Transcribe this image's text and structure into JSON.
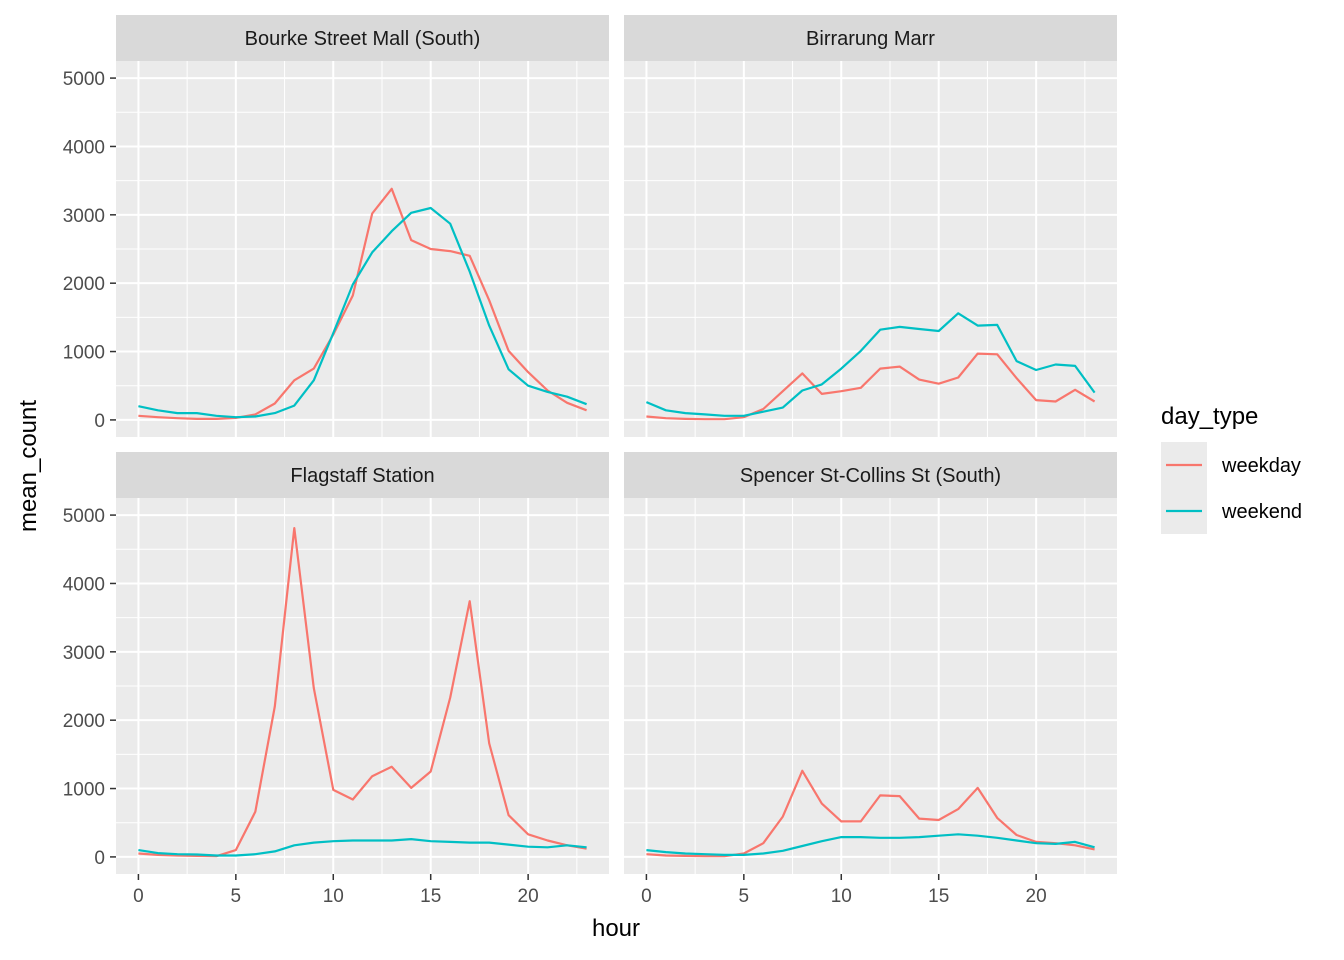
{
  "chart_data": {
    "type": "line",
    "xlabel": "hour",
    "ylabel": "mean_count",
    "xlim": [
      -1.15,
      24.15
    ],
    "ylim": [
      -250,
      5250
    ],
    "x_ticks": [
      0,
      5,
      10,
      15,
      20
    ],
    "y_ticks": [
      0,
      1000,
      2000,
      3000,
      4000,
      5000
    ],
    "grid": true,
    "legend": {
      "title": "day_type",
      "position": "right",
      "entries": [
        {
          "name": "weekday",
          "color": "#F8766D"
        },
        {
          "name": "weekend",
          "color": "#00BFC4"
        }
      ]
    },
    "x": [
      0,
      1,
      2,
      3,
      4,
      5,
      6,
      7,
      8,
      9,
      10,
      11,
      12,
      13,
      14,
      15,
      16,
      17,
      18,
      19,
      20,
      21,
      22,
      23
    ],
    "panels": [
      {
        "title": "Bourke Street Mall (South)",
        "series": [
          {
            "name": "weekday",
            "values": [
              60,
              40,
              25,
              15,
              15,
              30,
              80,
              240,
              580,
              750,
              1250,
              1820,
              3020,
              3380,
              2630,
              2500,
              2470,
              2400,
              1750,
              1010,
              700,
              430,
              250,
              140
            ]
          },
          {
            "name": "weekend",
            "values": [
              200,
              140,
              100,
              100,
              60,
              40,
              50,
              100,
              210,
              580,
              1270,
              1980,
              2450,
              2760,
              3030,
              3100,
              2870,
              2170,
              1380,
              740,
              500,
              410,
              340,
              230
            ]
          }
        ]
      },
      {
        "title": "Birrarung Marr",
        "series": [
          {
            "name": "weekday",
            "values": [
              50,
              25,
              15,
              10,
              10,
              40,
              160,
              420,
              680,
              380,
              420,
              470,
              750,
              780,
              590,
              530,
              620,
              970,
              960,
              610,
              290,
              270,
              440,
              270
            ]
          },
          {
            "name": "weekend",
            "values": [
              260,
              140,
              100,
              80,
              60,
              60,
              120,
              180,
              430,
              520,
              750,
              1010,
              1320,
              1360,
              1330,
              1300,
              1560,
              1380,
              1390,
              860,
              730,
              810,
              790,
              400
            ]
          }
        ]
      },
      {
        "title": "Flagstaff Station",
        "series": [
          {
            "name": "weekday",
            "values": [
              50,
              30,
              20,
              15,
              10,
              100,
              660,
              2200,
              4810,
              2470,
              980,
              840,
              1180,
              1320,
              1010,
              1250,
              2330,
              3740,
              1660,
              610,
              330,
              240,
              170,
              120
            ]
          },
          {
            "name": "weekend",
            "values": [
              100,
              55,
              40,
              35,
              20,
              20,
              40,
              80,
              170,
              210,
              230,
              240,
              240,
              240,
              260,
              230,
              220,
              210,
              210,
              180,
              150,
              140,
              170,
              140
            ]
          }
        ]
      },
      {
        "title": "Spencer St-Collins St (South)",
        "series": [
          {
            "name": "weekday",
            "values": [
              40,
              20,
              15,
              10,
              10,
              50,
              200,
              590,
              1260,
              780,
              520,
              520,
              900,
              890,
              560,
              540,
              700,
              1010,
              570,
              320,
              220,
              200,
              170,
              110
            ]
          },
          {
            "name": "weekend",
            "values": [
              100,
              70,
              50,
              40,
              30,
              30,
              50,
              90,
              160,
              230,
              290,
              290,
              280,
              280,
              290,
              310,
              330,
              310,
              280,
              240,
              200,
              190,
              220,
              140
            ]
          }
        ]
      }
    ]
  }
}
